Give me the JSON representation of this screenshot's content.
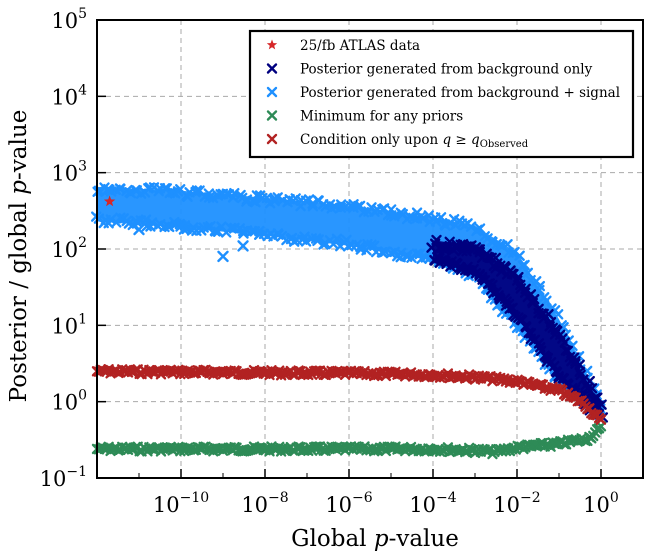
{
  "chart_data": {
    "type": "scatter",
    "xlabel": "Global p-value",
    "ylabel": "Posterior / global p-value",
    "xscale": "log",
    "yscale": "log",
    "xlim": [
      1e-12,
      10
    ],
    "ylim": [
      0.1,
      100000
    ],
    "grid": true,
    "legend_position": "top-right",
    "x_ticks": [
      {
        "value": 1e-10,
        "base": "10",
        "exp": "−10"
      },
      {
        "value": 1e-08,
        "base": "10",
        "exp": "−8"
      },
      {
        "value": 1e-06,
        "base": "10",
        "exp": "−6"
      },
      {
        "value": 0.0001,
        "base": "10",
        "exp": "−4"
      },
      {
        "value": 0.01,
        "base": "10",
        "exp": "−2"
      },
      {
        "value": 1,
        "base": "10",
        "exp": "0"
      }
    ],
    "y_ticks": [
      {
        "value": 0.1,
        "base": "10",
        "exp": "−1"
      },
      {
        "value": 1,
        "base": "10",
        "exp": "0"
      },
      {
        "value": 10,
        "base": "10",
        "exp": "1"
      },
      {
        "value": 100,
        "base": "10",
        "exp": "2"
      },
      {
        "value": 1000,
        "base": "10",
        "exp": "3"
      },
      {
        "value": 10000,
        "base": "10",
        "exp": "4"
      },
      {
        "value": 100000,
        "base": "10",
        "exp": "5"
      }
    ],
    "series": [
      {
        "name": "25/fb ATLAS data",
        "marker": "star",
        "color": "#d62728",
        "points": [
          [
            2e-12,
            420
          ]
        ]
      },
      {
        "name": "Posterior generated from background only",
        "marker": "x",
        "color": "#00007f",
        "band_upper": [
          [
            0.0001,
            130
          ],
          [
            0.001,
            110
          ],
          [
            0.01,
            45
          ],
          [
            0.1,
            8
          ],
          [
            1,
            0.9
          ]
        ],
        "band_lower": [
          [
            0.0001,
            70
          ],
          [
            0.001,
            50
          ],
          [
            0.01,
            13
          ],
          [
            0.1,
            2
          ],
          [
            1,
            0.6
          ]
        ]
      },
      {
        "name": "Posterior generated from background + signal",
        "marker": "x",
        "color": "#1e90ff",
        "band_upper": [
          [
            1e-12,
            650
          ],
          [
            1e-10,
            580
          ],
          [
            1e-08,
            470
          ],
          [
            1e-06,
            370
          ],
          [
            0.0001,
            260
          ],
          [
            0.001,
            200
          ],
          [
            0.01,
            90
          ],
          [
            0.1,
            12
          ],
          [
            1,
            1
          ]
        ],
        "band_lower": [
          [
            1e-12,
            230
          ],
          [
            1e-10,
            190
          ],
          [
            1e-08,
            150
          ],
          [
            1e-06,
            110
          ],
          [
            0.0001,
            70
          ],
          [
            0.001,
            42
          ],
          [
            0.01,
            9
          ],
          [
            0.1,
            1.8
          ],
          [
            1,
            0.7
          ]
        ],
        "outliers": [
          [
            1e-10,
            200
          ],
          [
            1e-09,
            80
          ],
          [
            3e-09,
            110
          ],
          [
            1e-11,
            180
          ]
        ]
      },
      {
        "name": "Minimum for any priors",
        "marker": "x",
        "color": "#2e8b57",
        "points": [
          [
            1e-12,
            0.24
          ],
          [
            1e-10,
            0.24
          ],
          [
            1e-08,
            0.24
          ],
          [
            1e-06,
            0.24
          ],
          [
            0.0001,
            0.24
          ],
          [
            0.001,
            0.23
          ],
          [
            0.003,
            0.22
          ],
          [
            0.01,
            0.25
          ],
          [
            0.1,
            0.28
          ],
          [
            0.5,
            0.33
          ],
          [
            1,
            0.45
          ]
        ]
      },
      {
        "name": "Condition only upon q ≥ q_Observed",
        "marker": "x",
        "color": "#b22222",
        "points": [
          [
            1e-12,
            2.5
          ],
          [
            1e-10,
            2.45
          ],
          [
            1e-08,
            2.4
          ],
          [
            1e-06,
            2.35
          ],
          [
            0.0001,
            2.25
          ],
          [
            0.001,
            2.1
          ],
          [
            0.01,
            1.85
          ],
          [
            0.1,
            1.4
          ],
          [
            0.4,
            0.95
          ],
          [
            1,
            0.55
          ]
        ]
      }
    ],
    "legend": {
      "entries": [
        {
          "text": "25/fb ATLAS data",
          "color": "#d62728",
          "marker": "star"
        },
        {
          "text": "Posterior generated from background only",
          "color": "#00007f",
          "marker": "x"
        },
        {
          "text": "Posterior generated from background + signal",
          "color": "#1e90ff",
          "marker": "x"
        },
        {
          "text": "Minimum for any priors",
          "color": "#2e8b57",
          "marker": "x"
        },
        {
          "text_main": "Condition only upon ",
          "text_q": "q",
          "text_geq": " ≥ ",
          "text_q2": "q",
          "text_sub": "Observed",
          "color": "#b22222",
          "marker": "x"
        }
      ]
    }
  }
}
